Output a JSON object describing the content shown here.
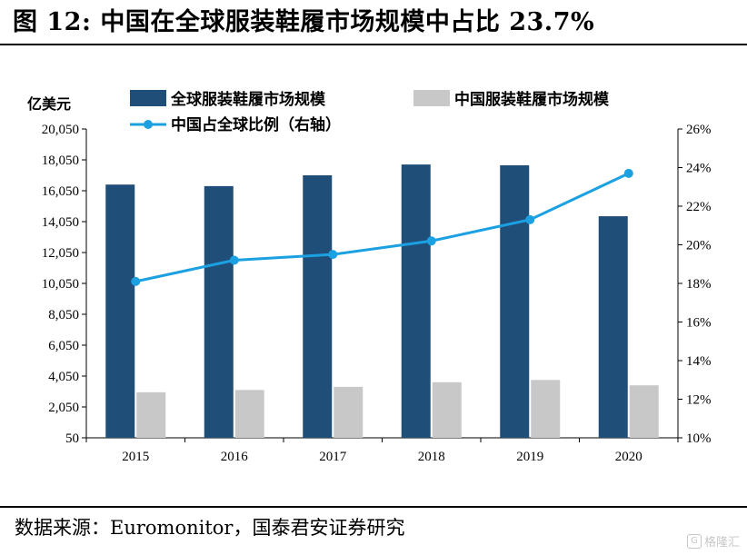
{
  "figure": {
    "title": "图 12:  中国在全球服装鞋履市场规模中占比 23.7%",
    "source": "数据来源：Euromonitor，国泰君安证券研究",
    "watermark": "格隆汇"
  },
  "colors": {
    "global_bar": "#1f4e79",
    "china_bar": "#c8c8c8",
    "share_line": "#1ba1e2"
  },
  "chart_data": {
    "type": "bar",
    "categories": [
      "2015",
      "2016",
      "2017",
      "2018",
      "2019",
      "2020"
    ],
    "series": [
      {
        "name": "全球服装鞋履市场规模",
        "kind": "bar",
        "axis": "left",
        "values": [
          16450,
          16350,
          17050,
          17750,
          17700,
          14400
        ]
      },
      {
        "name": "中国服装鞋履市场规模",
        "kind": "bar",
        "axis": "left",
        "values": [
          3000,
          3150,
          3350,
          3650,
          3800,
          3450
        ]
      },
      {
        "name": "中国占全球比例（右轴）",
        "kind": "line",
        "axis": "right",
        "values": [
          18.1,
          19.2,
          19.5,
          20.2,
          21.3,
          23.7
        ]
      }
    ],
    "ylabel": "亿美元",
    "ylim": [
      50,
      20050
    ],
    "yticks": [
      "20,050",
      "18,050",
      "16,050",
      "14,050",
      "12,050",
      "10,050",
      "8,050",
      "6,050",
      "4,050",
      "2,050",
      "50"
    ],
    "y2lim": [
      10,
      26
    ],
    "y2ticks": [
      "26%",
      "24%",
      "22%",
      "20%",
      "18%",
      "16%",
      "14%",
      "12%",
      "10%"
    ],
    "grid": false,
    "legend": "top"
  }
}
